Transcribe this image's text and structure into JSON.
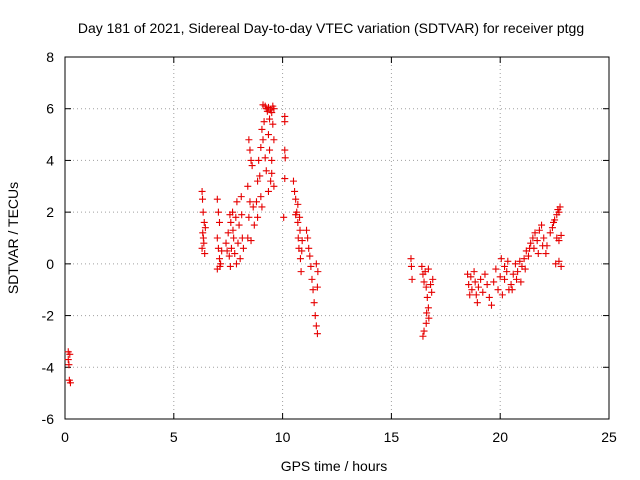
{
  "chart_data": {
    "type": "scatter",
    "title": "Day 181 of 2021, Sidereal Day-to-day VTEC variation (SDTVAR) for receiver ptgg",
    "xlabel": "GPS time / hours",
    "ylabel": "SDTVAR / TECUs",
    "xlim": [
      0,
      25
    ],
    "ylim": [
      -6,
      8
    ],
    "x_ticks": [
      "0",
      "5",
      "10",
      "15",
      "20",
      "25"
    ],
    "y_ticks": [
      "-6",
      "-4",
      "-2",
      "0",
      "2",
      "4",
      "6",
      "8"
    ],
    "grid": true,
    "marker": "+",
    "marker_color": "#e60000",
    "series": [
      {
        "name": "SDTVAR",
        "points": [
          [
            0.15,
            -3.4
          ],
          [
            0.15,
            -3.7
          ],
          [
            0.18,
            -3.9
          ],
          [
            0.2,
            -4.5
          ],
          [
            0.25,
            -4.6
          ],
          [
            0.22,
            -3.5
          ],
          [
            6.3,
            2.8
          ],
          [
            6.32,
            2.5
          ],
          [
            6.35,
            2.0
          ],
          [
            6.4,
            1.6
          ],
          [
            6.33,
            1.2
          ],
          [
            6.38,
            0.8
          ],
          [
            6.42,
            0.4
          ],
          [
            6.45,
            1.4
          ],
          [
            6.3,
            0.6
          ],
          [
            6.36,
            1.0
          ],
          [
            7.0,
            2.5
          ],
          [
            7.05,
            2.0
          ],
          [
            7.1,
            1.6
          ],
          [
            7.0,
            1.0
          ],
          [
            7.05,
            0.6
          ],
          [
            7.1,
            0.2
          ],
          [
            7.0,
            -0.2
          ],
          [
            7.15,
            0.0
          ],
          [
            7.2,
            0.5
          ],
          [
            7.12,
            -0.1
          ],
          [
            7.4,
            0.8
          ],
          [
            7.45,
            0.5
          ],
          [
            7.5,
            1.2
          ],
          [
            7.55,
            0.3
          ],
          [
            7.6,
            -0.1
          ],
          [
            7.62,
            1.6
          ],
          [
            7.7,
            2.0
          ],
          [
            7.75,
            1.0
          ],
          [
            7.8,
            0.4
          ],
          [
            7.85,
            1.8
          ],
          [
            7.9,
            2.4
          ],
          [
            7.95,
            0.8
          ],
          [
            8.0,
            1.5
          ],
          [
            8.05,
            0.2
          ],
          [
            8.1,
            2.6
          ],
          [
            8.15,
            1.0
          ],
          [
            8.2,
            0.6
          ],
          [
            7.65,
            0.6
          ],
          [
            7.72,
            1.3
          ],
          [
            7.88,
            0.0
          ],
          [
            8.12,
            1.9
          ],
          [
            7.58,
            1.9
          ],
          [
            8.4,
            1.0
          ],
          [
            8.45,
            1.8
          ],
          [
            8.5,
            2.4
          ],
          [
            8.4,
            3.0
          ],
          [
            8.55,
            4.0
          ],
          [
            8.45,
            4.8
          ],
          [
            8.5,
            4.4
          ],
          [
            8.6,
            3.8
          ],
          [
            8.65,
            2.2
          ],
          [
            8.7,
            1.5
          ],
          [
            8.55,
            0.9
          ],
          [
            8.8,
            2.4
          ],
          [
            8.85,
            3.2
          ],
          [
            8.9,
            4.0
          ],
          [
            8.95,
            3.4
          ],
          [
            9.0,
            2.6
          ],
          [
            9.0,
            4.5
          ],
          [
            9.05,
            5.2
          ],
          [
            9.1,
            4.8
          ],
          [
            9.15,
            5.5
          ],
          [
            9.2,
            4.1
          ],
          [
            9.25,
            3.6
          ],
          [
            9.3,
            5.9
          ],
          [
            9.35,
            5.0
          ],
          [
            9.4,
            4.4
          ],
          [
            9.45,
            3.2
          ],
          [
            9.5,
            4.0
          ],
          [
            9.55,
            5.4
          ],
          [
            9.6,
            6.0
          ],
          [
            9.6,
            3.0
          ],
          [
            9.2,
            6.1
          ],
          [
            9.25,
            6.0
          ],
          [
            9.35,
            6.05
          ],
          [
            9.45,
            5.95
          ],
          [
            9.5,
            5.85
          ],
          [
            9.55,
            6.1
          ],
          [
            8.85,
            1.8
          ],
          [
            9.05,
            2.2
          ],
          [
            9.35,
            2.8
          ],
          [
            9.5,
            3.5
          ],
          [
            9.6,
            4.8
          ],
          [
            9.1,
            6.15
          ],
          [
            9.4,
            5.6
          ],
          [
            10.1,
            5.7
          ],
          [
            10.1,
            5.5
          ],
          [
            10.1,
            4.4
          ],
          [
            10.12,
            4.1
          ],
          [
            10.1,
            3.3
          ],
          [
            10.05,
            1.8
          ],
          [
            10.5,
            3.2
          ],
          [
            10.55,
            2.8
          ],
          [
            10.6,
            2.5
          ],
          [
            10.65,
            2.0
          ],
          [
            10.7,
            1.6
          ],
          [
            10.72,
            1.0
          ],
          [
            10.75,
            0.6
          ],
          [
            10.8,
            1.3
          ],
          [
            10.82,
            0.2
          ],
          [
            10.85,
            -0.3
          ],
          [
            10.9,
            0.9
          ],
          [
            10.6,
            1.9
          ],
          [
            10.7,
            2.3
          ],
          [
            10.78,
            1.8
          ],
          [
            10.88,
            0.5
          ],
          [
            11.1,
            1.3
          ],
          [
            11.15,
            1.0
          ],
          [
            11.2,
            0.6
          ],
          [
            11.25,
            0.3
          ],
          [
            11.3,
            -0.1
          ],
          [
            11.35,
            -0.6
          ],
          [
            11.4,
            -1.0
          ],
          [
            11.45,
            -1.5
          ],
          [
            11.5,
            -2.0
          ],
          [
            11.55,
            -2.4
          ],
          [
            11.6,
            -2.7
          ],
          [
            11.6,
            -0.9
          ],
          [
            11.55,
            0.0
          ],
          [
            11.62,
            -0.3
          ],
          [
            15.9,
            0.2
          ],
          [
            15.92,
            -0.1
          ],
          [
            15.95,
            -0.6
          ],
          [
            16.4,
            -0.1
          ],
          [
            16.45,
            -0.4
          ],
          [
            16.5,
            -0.7
          ],
          [
            16.55,
            -0.3
          ],
          [
            16.6,
            -0.9
          ],
          [
            16.65,
            -1.3
          ],
          [
            16.7,
            -1.7
          ],
          [
            16.72,
            -2.1
          ],
          [
            16.6,
            -2.3
          ],
          [
            16.5,
            -2.6
          ],
          [
            16.45,
            -2.8
          ],
          [
            16.8,
            -0.8
          ],
          [
            16.85,
            -1.1
          ],
          [
            16.9,
            -0.6
          ],
          [
            16.7,
            -0.2
          ],
          [
            16.62,
            -1.9
          ],
          [
            18.5,
            -0.4
          ],
          [
            18.55,
            -0.8
          ],
          [
            18.6,
            -1.2
          ],
          [
            18.65,
            -0.5
          ],
          [
            18.7,
            -1.0
          ],
          [
            18.8,
            -0.3
          ],
          [
            18.85,
            -0.7
          ],
          [
            18.9,
            -1.2
          ],
          [
            18.95,
            -1.5
          ],
          [
            19.0,
            -0.9
          ],
          [
            19.1,
            -0.6
          ],
          [
            19.2,
            -1.1
          ],
          [
            19.3,
            -0.4
          ],
          [
            19.4,
            -0.8
          ],
          [
            19.5,
            -1.3
          ],
          [
            19.6,
            -1.6
          ],
          [
            19.7,
            -0.7
          ],
          [
            19.8,
            -0.2
          ],
          [
            19.9,
            -1.0
          ],
          [
            20.0,
            -0.5
          ],
          [
            20.05,
            0.2
          ],
          [
            20.1,
            -1.2
          ],
          [
            20.2,
            -0.6
          ],
          [
            20.3,
            -0.3
          ],
          [
            20.4,
            -1.0
          ],
          [
            20.5,
            -0.8
          ],
          [
            20.6,
            -0.4
          ],
          [
            20.7,
            0.0
          ],
          [
            20.8,
            -0.3
          ],
          [
            20.9,
            0.1
          ],
          [
            21.0,
            -0.1
          ],
          [
            21.1,
            0.2
          ],
          [
            21.2,
            0.5
          ],
          [
            21.3,
            0.3
          ],
          [
            21.4,
            0.8
          ],
          [
            21.5,
            1.0
          ],
          [
            21.6,
            1.2
          ],
          [
            21.7,
            0.9
          ],
          [
            21.8,
            1.3
          ],
          [
            21.9,
            1.5
          ],
          [
            22.0,
            1.0
          ],
          [
            22.1,
            0.4
          ],
          [
            22.15,
            0.7
          ],
          [
            22.3,
            1.2
          ],
          [
            22.4,
            1.4
          ],
          [
            22.5,
            1.7
          ],
          [
            22.6,
            1.9
          ],
          [
            22.7,
            2.0
          ],
          [
            22.75,
            2.2
          ],
          [
            22.8,
            1.1
          ],
          [
            22.7,
            0.9
          ],
          [
            22.55,
            0.0
          ],
          [
            22.7,
            0.1
          ],
          [
            22.8,
            -0.1
          ],
          [
            22.6,
            1.0
          ],
          [
            22.65,
            2.1
          ],
          [
            22.45,
            1.6
          ],
          [
            20.2,
            -0.1
          ],
          [
            20.35,
            0.1
          ],
          [
            20.55,
            -1.0
          ],
          [
            20.75,
            -0.6
          ],
          [
            20.95,
            -0.7
          ],
          [
            21.15,
            -0.2
          ],
          [
            21.35,
            0.6
          ],
          [
            21.55,
            0.6
          ],
          [
            21.75,
            0.4
          ],
          [
            21.95,
            0.7
          ]
        ]
      }
    ]
  }
}
